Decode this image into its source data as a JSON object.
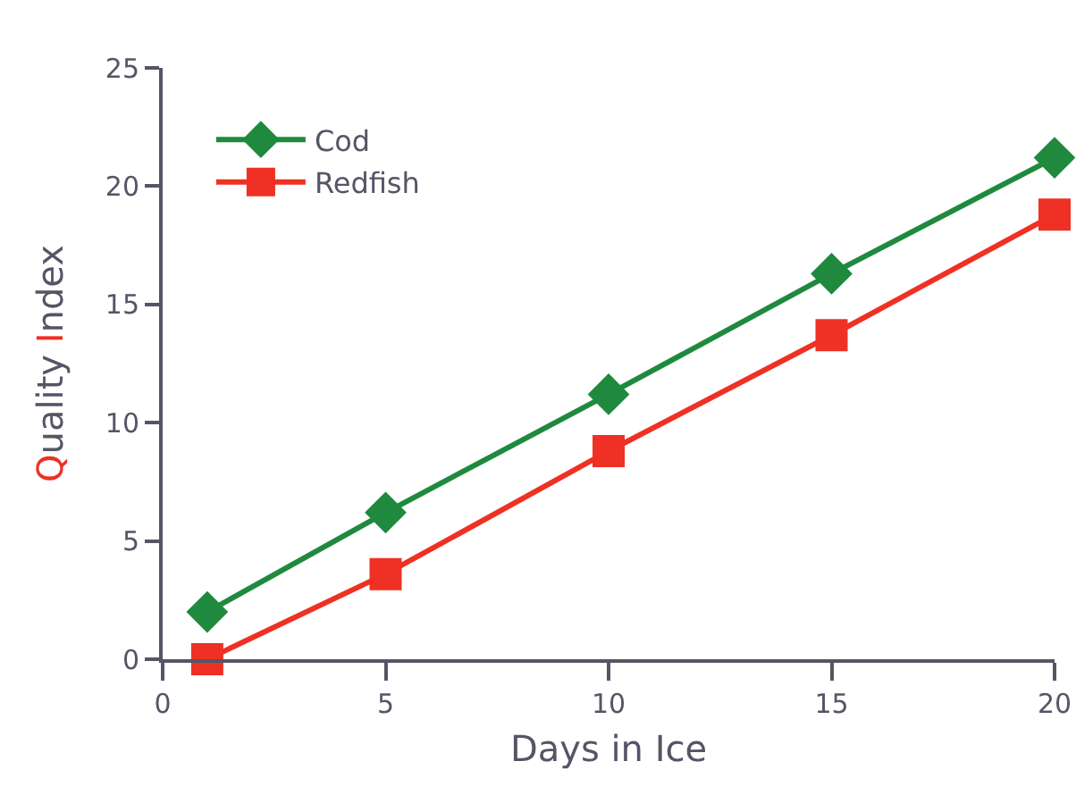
{
  "chart_data": {
    "type": "line",
    "xlabel": "Days in Ice",
    "ylabel": "Quality Index",
    "x": [
      1,
      5,
      10,
      15,
      20
    ],
    "series": [
      {
        "name": "Cod",
        "color": "#1f8a3e",
        "marker": "diamond",
        "values": [
          2.0,
          6.2,
          11.2,
          16.3,
          21.2
        ]
      },
      {
        "name": "Redfish",
        "color": "#ee3124",
        "marker": "square",
        "values": [
          0,
          3.6,
          8.8,
          13.7,
          18.8
        ]
      }
    ],
    "xlim": [
      0,
      20
    ],
    "xticks": [
      0,
      5,
      10,
      15,
      20
    ],
    "ylim": [
      0,
      25
    ],
    "yticks": [
      0,
      5,
      10,
      15,
      20,
      25
    ],
    "grid": false,
    "legend": "top left",
    "line_style": "solid"
  }
}
